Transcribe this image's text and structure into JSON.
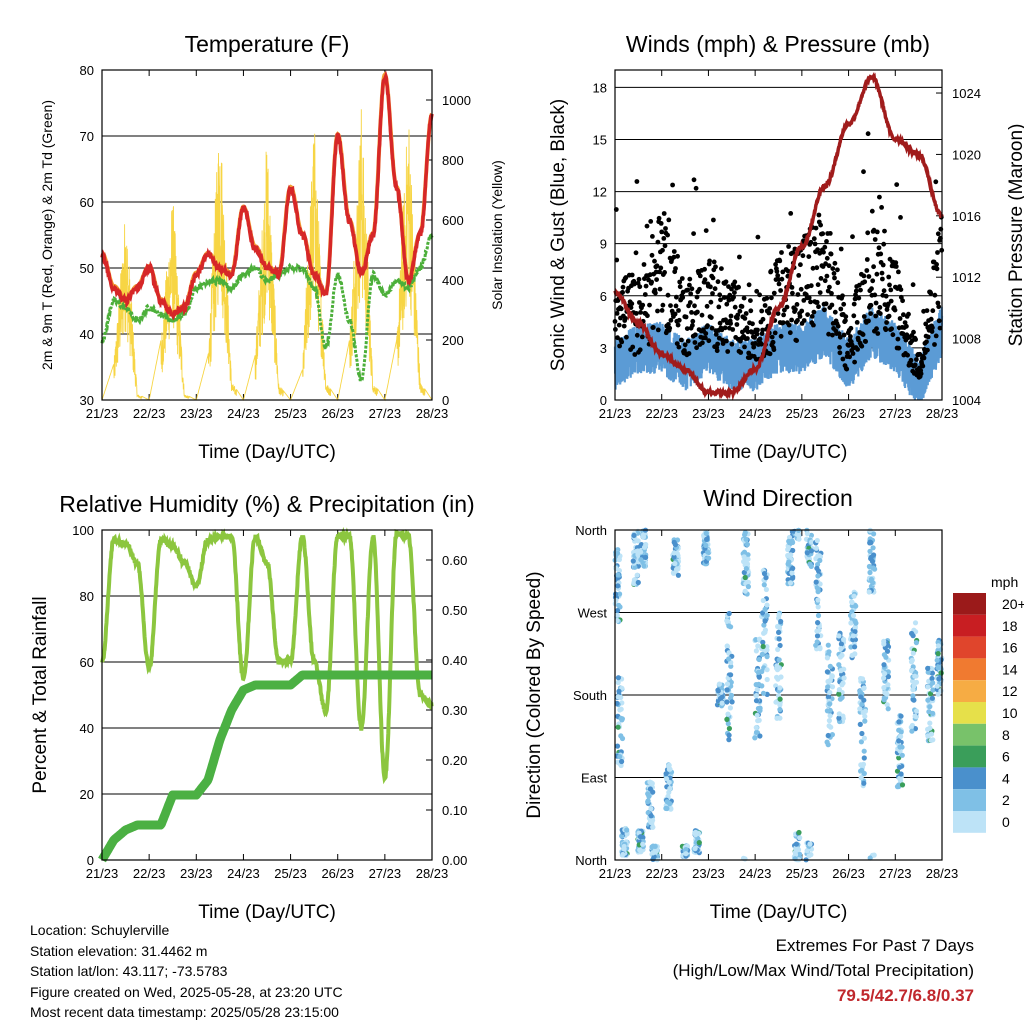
{
  "x_ticks": [
    "21/23",
    "22/23",
    "23/23",
    "24/23",
    "25/23",
    "26/23",
    "27/23",
    "28/23"
  ],
  "x_label": "Time (Day/UTC)",
  "colors": {
    "temp2m": "#d62728",
    "temp9m": "#f39c34",
    "dewpoint": "#4caf3a",
    "solar": "#f7d544",
    "wind": "#5b9bd5",
    "gust": "#000000",
    "pressure": "#a01c1c",
    "rh": "#8cc63f",
    "rain": "#4bb043"
  },
  "charts": [
    {
      "id": "temperature",
      "title": "Temperature (F)",
      "ylabel": "2m & 9m T (Red, Orange) & 2m Td (Green)",
      "y2label": "Solar Insolation (Yellow)",
      "y_ticks": [
        "30",
        "40",
        "50",
        "60",
        "70",
        "80"
      ],
      "y2_ticks": [
        "0",
        "200",
        "400",
        "600",
        "800",
        "1000"
      ]
    },
    {
      "id": "winds",
      "title": "Winds (mph) & Pressure (mb)",
      "ylabel": "Sonic Wind & Gust (Blue, Black)",
      "y2label": "Station Pressure (Maroon)",
      "y_ticks": [
        "0",
        "3",
        "6",
        "9",
        "12",
        "15",
        "18"
      ],
      "y2_ticks": [
        "1004",
        "1008",
        "1012",
        "1016",
        "1020",
        "1024"
      ]
    },
    {
      "id": "humidity",
      "title": "Relative Humidity (%) & Precipitation (in)",
      "ylabel": "Percent & Total Rainfall",
      "y_ticks": [
        "0",
        "20",
        "40",
        "60",
        "80",
        "100"
      ],
      "y2_ticks": [
        "0.00",
        "0.10",
        "0.20",
        "0.30",
        "0.40",
        "0.50",
        "0.60"
      ]
    },
    {
      "id": "direction",
      "title": "Wind Direction",
      "ylabel": "Direction (Colored By Speed)",
      "y_ticks": [
        "North",
        "East",
        "South",
        "West",
        "North"
      ],
      "legend_title": "mph",
      "legend_labels": [
        "0",
        "2",
        "4",
        "6",
        "8",
        "10",
        "12",
        "14",
        "16",
        "18",
        "20+"
      ],
      "legend_colors": [
        "#bde3f7",
        "#7fc0e6",
        "#4a90cc",
        "#3a9e5a",
        "#78c26a",
        "#e6e04a",
        "#f6ac44",
        "#f07a30",
        "#e0452c",
        "#c81e22",
        "#9b1a1a"
      ]
    }
  ],
  "chart_data": [
    {
      "type": "line",
      "title": "Temperature (F)",
      "x": [
        0,
        0.25,
        0.5,
        0.75,
        1.0,
        1.25,
        1.5,
        1.75,
        2.0,
        2.25,
        2.5,
        2.75,
        3.0,
        3.25,
        3.5,
        3.75,
        4.0,
        4.25,
        4.5,
        4.75,
        5.0,
        5.25,
        5.5,
        5.75,
        6.0,
        6.25,
        6.5,
        6.75,
        7.0
      ],
      "series": [
        {
          "name": "2m T",
          "values": [
            52,
            47,
            45,
            47,
            50,
            45,
            43,
            44,
            49,
            52,
            50,
            49,
            59,
            53,
            50,
            49,
            62,
            55,
            49,
            46,
            70,
            57,
            49,
            55,
            79,
            62,
            48,
            55,
            73
          ]
        },
        {
          "name": "9m T",
          "values": [
            52,
            47,
            45,
            47,
            50,
            45,
            43,
            44,
            49,
            52,
            50,
            49,
            59,
            53,
            50,
            49,
            62,
            55,
            49,
            46,
            70,
            57,
            49,
            55,
            79,
            62,
            48,
            55,
            73
          ]
        },
        {
          "name": "2m Td",
          "values": [
            39,
            45,
            44,
            42,
            44,
            43,
            42,
            43,
            47,
            48,
            48,
            47,
            49,
            50,
            48,
            49,
            50,
            50,
            47,
            38,
            49,
            42,
            33,
            49,
            46,
            48,
            47,
            50,
            55
          ]
        },
        {
          "name": "Solar Insolation",
          "values": [
            0,
            120,
            650,
            20,
            0,
            200,
            700,
            20,
            0,
            150,
            1000,
            60,
            0,
            150,
            900,
            50,
            0,
            100,
            950,
            60,
            0,
            200,
            1000,
            60,
            0,
            200,
            1000,
            60,
            0
          ]
        }
      ],
      "ylim": [
        30,
        80
      ],
      "y2lim": [
        0,
        1100
      ]
    },
    {
      "type": "line",
      "title": "Winds (mph) & Pressure (mb)",
      "x": [
        0,
        0.5,
        1.0,
        1.5,
        2.0,
        2.5,
        3.0,
        3.5,
        4.0,
        4.5,
        5.0,
        5.5,
        6.0,
        6.5,
        7.0
      ],
      "series": [
        {
          "name": "Pressure",
          "values": [
            1011,
            1009,
            1007,
            1006,
            1004.5,
            1004.5,
            1006,
            1010,
            1014,
            1018,
            1022,
            1025,
            1021,
            1020,
            1016
          ]
        },
        {
          "name": "Wind",
          "values": [
            2,
            3,
            3,
            2,
            3,
            2,
            2,
            3,
            3,
            4,
            2,
            4,
            3,
            1,
            4
          ]
        },
        {
          "name": "Gust",
          "values": [
            6,
            5,
            8,
            5,
            6,
            5,
            4,
            6,
            7,
            8,
            3,
            8,
            6,
            2,
            8
          ]
        }
      ],
      "ylim": [
        0,
        19
      ],
      "y2lim": [
        1004,
        1025.5
      ]
    },
    {
      "type": "line",
      "title": "Relative Humidity (%) & Precipitation (in)",
      "x": [
        0,
        0.25,
        0.5,
        0.75,
        1.0,
        1.25,
        1.5,
        1.75,
        2.0,
        2.25,
        2.5,
        2.75,
        3.0,
        3.25,
        3.5,
        3.75,
        4.0,
        4.25,
        4.5,
        4.75,
        5.0,
        5.25,
        5.5,
        5.75,
        6.0,
        6.25,
        6.5,
        6.75,
        7.0
      ],
      "series": [
        {
          "name": "RH",
          "values": [
            60,
            97,
            96,
            90,
            58,
            97,
            95,
            90,
            83,
            97,
            98,
            98,
            55,
            98,
            90,
            60,
            60,
            98,
            60,
            45,
            98,
            98,
            40,
            98,
            25,
            99,
            98,
            50,
            47
          ]
        },
        {
          "name": "Precipitation",
          "values": [
            0,
            0.04,
            0.06,
            0.07,
            0.07,
            0.07,
            0.13,
            0.13,
            0.13,
            0.16,
            0.24,
            0.3,
            0.34,
            0.35,
            0.35,
            0.35,
            0.35,
            0.37,
            0.37,
            0.37,
            0.37,
            0.37,
            0.37,
            0.37,
            0.37,
            0.37,
            0.37,
            0.37,
            0.37
          ]
        }
      ],
      "ylim": [
        0,
        100
      ],
      "y2lim": [
        0,
        0.66
      ]
    },
    {
      "type": "scatter",
      "title": "Wind Direction",
      "x": [
        0,
        1,
        2,
        3,
        4,
        5,
        6,
        7
      ],
      "series": [
        {
          "name": "Direction",
          "values": [
            180,
            45,
            180,
            180,
            200,
            200,
            180,
            200
          ]
        }
      ],
      "ylim": [
        0,
        360
      ]
    }
  ],
  "footer": {
    "location": "Location: Schuylerville",
    "elevation": "Station elevation: 31.4462 m",
    "latlon": "Station lat/lon: 43.117; -73.5783",
    "created": "Figure created on Wed, 2025-05-28, at 23:20 UTC",
    "timestamp": "Most recent data timestamp: 2025/05/28 23:15:00"
  },
  "extremes": {
    "title": "Extremes For Past 7 Days",
    "subtitle": "(High/Low/Max Wind/Total Precipitation)",
    "values": "79.5/42.7/6.8/0.37"
  }
}
